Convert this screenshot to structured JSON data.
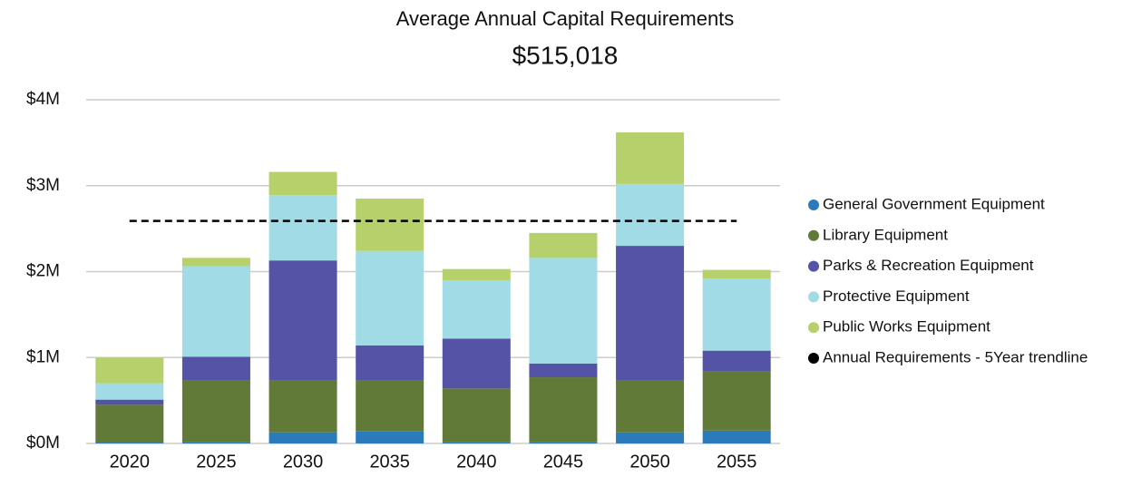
{
  "chart_data": {
    "type": "stacked_bar",
    "title": "Average Annual Capital Requirements",
    "subtitle": "$515,018",
    "categories": [
      "2020",
      "2025",
      "2030",
      "2035",
      "2040",
      "2045",
      "2050",
      "2055"
    ],
    "series": [
      {
        "name": "General Government Equipment",
        "color": "#2b7bba",
        "values": [
          0.01,
          0.02,
          0.13,
          0.14,
          0.02,
          0.02,
          0.13,
          0.15
        ]
      },
      {
        "name": "Library Equipment",
        "color": "#617a37",
        "values": [
          0.44,
          0.71,
          0.6,
          0.59,
          0.62,
          0.75,
          0.6,
          0.69
        ]
      },
      {
        "name": "Parks & Recreation Equipment",
        "color": "#5453a6",
        "values": [
          0.06,
          0.28,
          1.4,
          0.41,
          0.58,
          0.16,
          1.57,
          0.24
        ]
      },
      {
        "name": "Protective Equipment",
        "color": "#a1dbe6",
        "values": [
          0.19,
          1.05,
          0.76,
          1.1,
          0.68,
          1.23,
          0.72,
          0.84
        ]
      },
      {
        "name": "Public Works Equipment",
        "color": "#b6d16b",
        "values": [
          0.3,
          0.1,
          0.27,
          0.61,
          0.13,
          0.29,
          0.6,
          0.1
        ]
      },
      {
        "name": "Annual Requirements - 5Year trendline",
        "color": "#000000",
        "type": "line",
        "dashed": true,
        "values": [
          2.59,
          2.59,
          2.59,
          2.59,
          2.59,
          2.59,
          2.59,
          2.59
        ]
      }
    ],
    "ylim": [
      0,
      4
    ],
    "yticks": [
      {
        "value": 0,
        "label": "$0M"
      },
      {
        "value": 1,
        "label": "$1M"
      },
      {
        "value": 2,
        "label": "$2M"
      },
      {
        "value": 3,
        "label": "$3M"
      },
      {
        "value": 4,
        "label": "$4M"
      }
    ],
    "grid": true,
    "legend": "right"
  }
}
